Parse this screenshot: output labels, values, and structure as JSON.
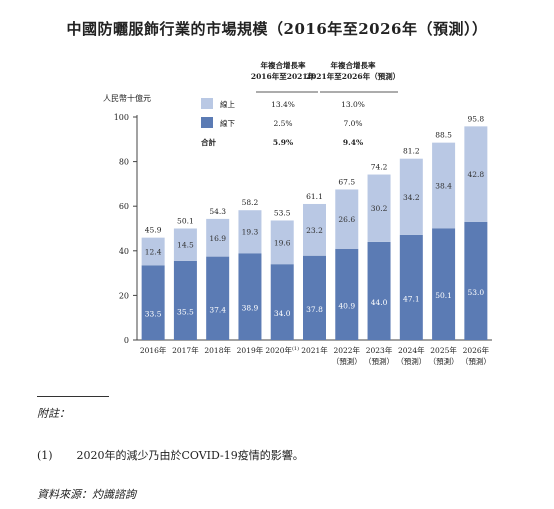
{
  "chart_data": {
    "type": "bar",
    "stacked": true,
    "title": "中國防曬服飾行業的市場規模（2016年至2026年（預測））",
    "ylabel": "人民幣十億元",
    "ylim": [
      0,
      100
    ],
    "yticks": [
      0,
      20,
      40,
      60,
      80,
      100
    ],
    "categories": [
      {
        "year": "2016年",
        "sub": ""
      },
      {
        "year": "2017年",
        "sub": ""
      },
      {
        "year": "2018年",
        "sub": ""
      },
      {
        "year": "2019年",
        "sub": ""
      },
      {
        "year": "2020年",
        "sup": "(1)",
        "sub": ""
      },
      {
        "year": "2021年",
        "sub": ""
      },
      {
        "year": "2022年",
        "sub": "（預測）"
      },
      {
        "year": "2023年",
        "sub": "（預測）"
      },
      {
        "year": "2024年",
        "sub": "（預測）"
      },
      {
        "year": "2025年",
        "sub": "（預測）"
      },
      {
        "year": "2026年",
        "sub": "（預測）"
      }
    ],
    "series": [
      {
        "name": "線下",
        "color": "#5b7bb4",
        "values": [
          33.5,
          35.5,
          37.4,
          38.9,
          34.0,
          37.8,
          40.9,
          44.0,
          47.1,
          50.1,
          53.0
        ]
      },
      {
        "name": "線上",
        "color": "#b9c8e4",
        "values": [
          12.4,
          14.5,
          16.9,
          19.3,
          19.6,
          23.2,
          26.6,
          30.2,
          34.2,
          38.4,
          42.8
        ]
      }
    ],
    "totals": [
      45.9,
      50.1,
      54.3,
      58.2,
      53.5,
      61.1,
      67.5,
      74.2,
      81.2,
      88.5,
      95.8
    ],
    "cagr_table": {
      "headers": [
        "年複合增長率\n2016年至2021年",
        "年複合增長率\n2021年至2026年（預測）"
      ],
      "rows": [
        {
          "label": "線上",
          "values": [
            "13.4%",
            "13.0%"
          ]
        },
        {
          "label": "線下",
          "values": [
            "2.5%",
            "7.0%"
          ]
        },
        {
          "label": "合計",
          "values": [
            "5.9%",
            "9.4%"
          ]
        }
      ]
    }
  },
  "notes": {
    "label": "附註：",
    "items": [
      {
        "num": "(1)",
        "text": "2020年的減少乃由於COVID-19疫情的影響。"
      }
    ]
  },
  "source": "資料來源：灼識諮詢"
}
